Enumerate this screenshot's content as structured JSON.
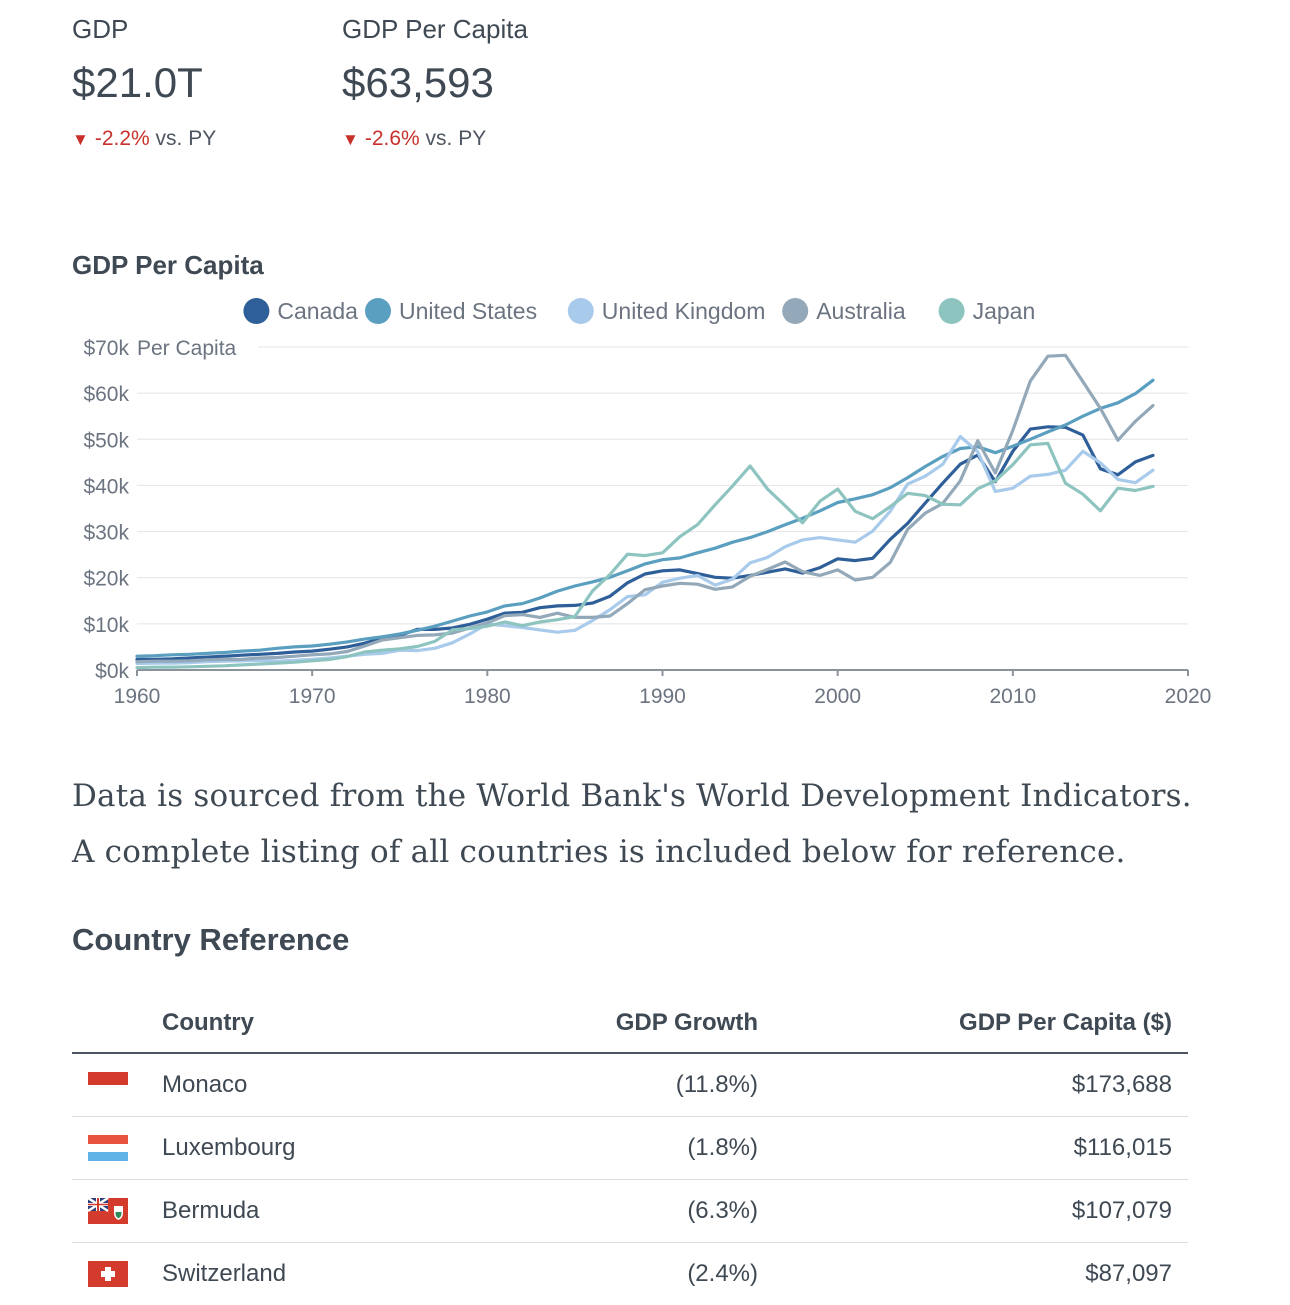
{
  "kpis": [
    {
      "label": "GDP",
      "value": "$21.0T",
      "delta": "-2.2%",
      "delta_suffix": "vs. PY"
    },
    {
      "label": "GDP Per Capita",
      "value": "$63,593",
      "delta": "-2.6%",
      "delta_suffix": "vs. PY"
    }
  ],
  "chart_data": {
    "type": "line",
    "title": "GDP Per Capita",
    "ylabel": "Per Capita",
    "xlim": [
      1960,
      2020
    ],
    "ylim": [
      0,
      70000
    ],
    "x_ticks": [
      "1960",
      "1970",
      "1980",
      "1990",
      "2000",
      "2010",
      "2020"
    ],
    "y_ticks": [
      "$0k",
      "$10k",
      "$20k",
      "$30k",
      "$40k",
      "$50k",
      "$60k",
      "$70k"
    ],
    "grid": true,
    "legend_position": "top",
    "x": [
      1960,
      1961,
      1962,
      1963,
      1964,
      1965,
      1966,
      1967,
      1968,
      1969,
      1970,
      1971,
      1972,
      1973,
      1974,
      1975,
      1976,
      1977,
      1978,
      1979,
      1980,
      1981,
      1982,
      1983,
      1984,
      1985,
      1986,
      1987,
      1988,
      1989,
      1990,
      1991,
      1992,
      1993,
      1994,
      1995,
      1996,
      1997,
      1998,
      1999,
      2000,
      2001,
      2002,
      2003,
      2004,
      2005,
      2006,
      2007,
      2008,
      2009,
      2010,
      2011,
      2012,
      2013,
      2014,
      2015,
      2016,
      2017,
      2018
    ],
    "series": [
      {
        "name": "Canada",
        "color": "#2f5f98",
        "values": [
          2300,
          2300,
          2400,
          2600,
          2800,
          3000,
          3200,
          3400,
          3600,
          3900,
          4100,
          4500,
          5000,
          5800,
          6900,
          7500,
          8800,
          8800,
          9100,
          9900,
          11000,
          12300,
          12500,
          13500,
          13900,
          14000,
          14500,
          16000,
          18900,
          20800,
          21500,
          21700,
          20900,
          20100,
          19900,
          20500,
          21200,
          21900,
          21000,
          22200,
          24100,
          23700,
          24200,
          28300,
          31800,
          36200,
          40500,
          44600,
          46600,
          40800,
          47400,
          52200,
          52700,
          52600,
          50900,
          43600,
          42300,
          45100,
          46500
        ]
      },
      {
        "name": "United States",
        "color": "#5b9fc0",
        "values": [
          3000,
          3100,
          3300,
          3400,
          3600,
          3800,
          4100,
          4300,
          4700,
          5000,
          5200,
          5600,
          6100,
          6700,
          7200,
          7800,
          8600,
          9500,
          10600,
          11700,
          12600,
          13900,
          14400,
          15600,
          17100,
          18200,
          19100,
          20100,
          21500,
          23000,
          23900,
          24300,
          25400,
          26400,
          27700,
          28700,
          30000,
          31500,
          32900,
          34500,
          36300,
          37100,
          38000,
          39500,
          41700,
          44100,
          46300,
          48000,
          48400,
          47100,
          48500,
          50000,
          51600,
          53100,
          55000,
          56700,
          57900,
          59900,
          62800
        ]
      },
      {
        "name": "United Kingdom",
        "color": "#a8caeb",
        "values": [
          1400,
          1500,
          1500,
          1600,
          1800,
          1900,
          2000,
          2100,
          1900,
          2100,
          2300,
          2600,
          3000,
          3400,
          3600,
          4300,
          4200,
          4700,
          5900,
          7800,
          10000,
          9600,
          9200,
          8700,
          8200,
          8600,
          10700,
          13100,
          15900,
          16300,
          19000,
          19900,
          20500,
          18400,
          19700,
          23200,
          24400,
          26700,
          28200,
          28700,
          28200,
          27700,
          30100,
          34400,
          40300,
          42000,
          44600,
          50600,
          47300,
          38700,
          39400,
          42000,
          42400,
          43300,
          47400,
          44900,
          41300,
          40600,
          43300
        ]
      },
      {
        "name": "Australia",
        "color": "#93a8b8",
        "values": [
          1800,
          1900,
          1900,
          2000,
          2200,
          2300,
          2300,
          2600,
          2700,
          3000,
          3300,
          3500,
          4000,
          5200,
          6500,
          7000,
          7500,
          7600,
          8000,
          9100,
          10200,
          11800,
          12000,
          11400,
          12300,
          11400,
          11400,
          11700,
          14400,
          17400,
          18200,
          18800,
          18600,
          17500,
          18000,
          20300,
          21800,
          23400,
          21300,
          20500,
          21700,
          19500,
          20100,
          23300,
          30500,
          34000,
          36100,
          41000,
          49700,
          42700,
          51900,
          62600,
          68000,
          68200,
          62500,
          56700,
          49800,
          53900,
          57300
        ]
      },
      {
        "name": "Japan",
        "color": "#8ec4c0",
        "values": [
          500,
          600,
          600,
          700,
          800,
          900,
          1100,
          1300,
          1500,
          1700,
          2000,
          2300,
          2900,
          3900,
          4300,
          4600,
          5100,
          6200,
          8700,
          9000,
          9500,
          10400,
          9600,
          10400,
          10900,
          11600,
          17100,
          20700,
          25100,
          24800,
          25400,
          28900,
          31500,
          35800,
          39900,
          44200,
          39200,
          35600,
          31900,
          36600,
          39200,
          34400,
          32800,
          35400,
          38300,
          37800,
          35900,
          35800,
          39300,
          41000,
          44500,
          48800,
          49100,
          40500,
          38100,
          34500,
          39400,
          38900,
          39800
        ]
      }
    ]
  },
  "note": {
    "line1": "Data is sourced from the World Bank's World Development Indicators.",
    "line2": "A complete listing of all countries is included below for reference."
  },
  "reference": {
    "title": "Country Reference",
    "columns": [
      "Country",
      "GDP Growth",
      "GDP Per Capita ($)"
    ],
    "rows": [
      {
        "flag": "monaco-flag",
        "country": "Monaco",
        "growth": "(11.8%)",
        "per_capita": "$173,688"
      },
      {
        "flag": "luxembourg-flag",
        "country": "Luxembourg",
        "growth": "(1.8%)",
        "per_capita": "$116,015"
      },
      {
        "flag": "bermuda-flag",
        "country": "Bermuda",
        "growth": "(6.3%)",
        "per_capita": "$107,079"
      },
      {
        "flag": "switzerland-flag",
        "country": "Switzerland",
        "growth": "(2.4%)",
        "per_capita": "$87,097"
      }
    ]
  }
}
